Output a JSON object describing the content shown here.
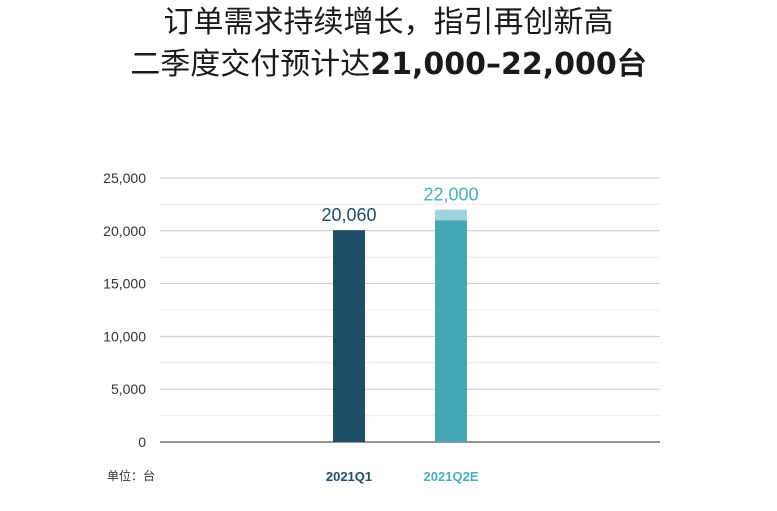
{
  "header": {
    "title_line1": "订单需求持续增长，指引再创新高",
    "title_line2_prefix": "二季度交付预计达",
    "title_line2_bold": "21,000–22,000台"
  },
  "chart_data": {
    "type": "bar",
    "categories": [
      "2021Q1",
      "2021Q2E"
    ],
    "values": [
      20060,
      22000
    ],
    "range_low": [
      null,
      21000
    ],
    "value_labels": [
      "20,060",
      "22,000"
    ],
    "ylim": [
      0,
      25000
    ],
    "yticks": [
      0,
      5000,
      10000,
      15000,
      20000,
      25000
    ],
    "ytick_labels": [
      "0",
      "5,000",
      "10,000",
      "15,000",
      "20,000",
      "25,000"
    ],
    "unit_label": "单位：台",
    "grid": true,
    "colors": {
      "q1": "#1f4e68",
      "q2": "#45a6b6",
      "q2_range": "#9fd2db",
      "q1_label": "#1f4e68",
      "q2_label": "#45b0c0",
      "grid": "#c8c8c8",
      "axis": "#555555"
    }
  }
}
